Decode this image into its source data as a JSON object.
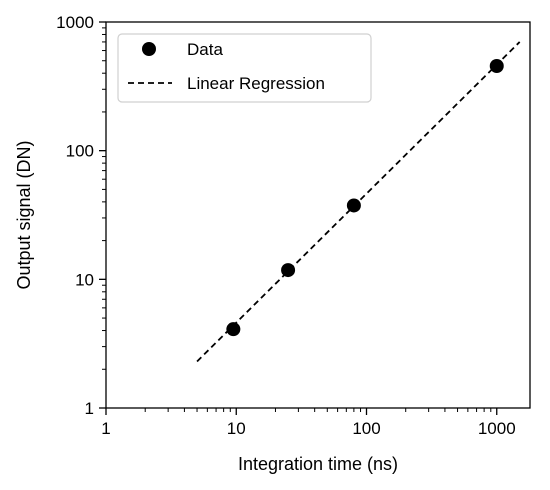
{
  "chart_data": {
    "type": "scatter",
    "title": "",
    "xlabel": "Integration time (ns)",
    "ylabel": "Output signal (DN)",
    "xscale": "log",
    "yscale": "log",
    "xlim": [
      1,
      1800
    ],
    "ylim": [
      1,
      1000
    ],
    "x_ticks": [
      {
        "value": 1,
        "label": "1"
      },
      {
        "value": 10,
        "label": "10"
      },
      {
        "value": 100,
        "label": "100"
      },
      {
        "value": 1000,
        "label": "1000"
      }
    ],
    "y_ticks": [
      {
        "value": 1,
        "label": "1"
      },
      {
        "value": 10,
        "label": "10"
      },
      {
        "value": 100,
        "label": "100"
      },
      {
        "value": 1000,
        "label": "1000"
      }
    ],
    "grid": false,
    "legend_position": "top-left",
    "series": [
      {
        "name": "Data",
        "kind": "points",
        "color": "#000000",
        "x": [
          9.5,
          25,
          80,
          1000
        ],
        "y": [
          4.1,
          11.8,
          37.5,
          455
        ]
      },
      {
        "name": "Linear Regression",
        "kind": "dashed-line",
        "color": "#000000",
        "x": [
          5,
          1500
        ],
        "y": [
          2.3,
          700
        ]
      }
    ]
  }
}
